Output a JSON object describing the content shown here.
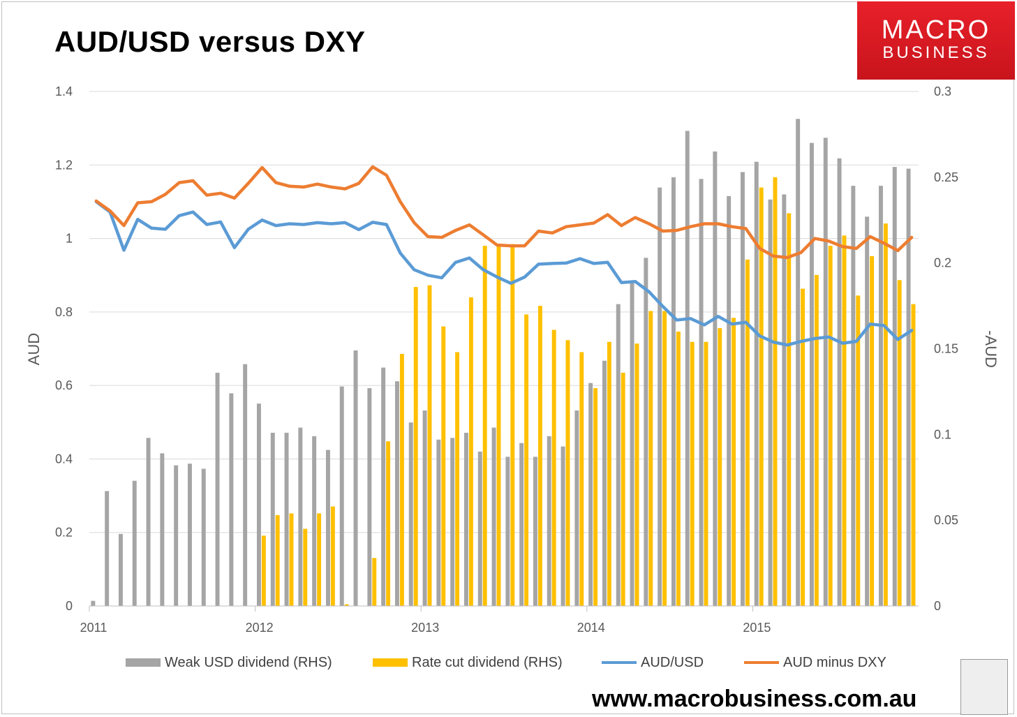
{
  "title": "AUD/USD versus DXY",
  "logo": {
    "line1": "MACRO",
    "line2": "BUSINESS"
  },
  "url": "www.macrobusiness.com.au",
  "chart_data": {
    "type": "bar+line",
    "title": "AUD/USD versus DXY",
    "ylabel_left": "AUD",
    "ylabel_right": "-AUD",
    "ylim_left": [
      0,
      1.4
    ],
    "ylim_right": [
      0,
      0.3
    ],
    "yticks_left": [
      "0",
      "0.2",
      "0.4",
      "0.6",
      "0.8",
      "1",
      "1.2",
      "1.4"
    ],
    "yticks_right": [
      "0",
      "0.05",
      "0.1",
      "0.15",
      "0.2",
      "0.25",
      "0.3"
    ],
    "xticks": [
      "2011",
      "2012",
      "2013",
      "2014",
      "2015"
    ],
    "grid": "horizontal",
    "legend_placement": "bottom",
    "colors": {
      "weak_usd": "#a5a5a5",
      "rate_cut": "#ffc000",
      "audusd": "#5b9bd5",
      "aud_minus_dxy": "#ed7d31"
    },
    "series": [
      {
        "name": "Weak USD dividend (RHS)",
        "axis": "right",
        "kind": "bar",
        "values": [
          0.003,
          0.067,
          0.042,
          0.073,
          0.098,
          0.089,
          0.082,
          0.083,
          0.08,
          0.136,
          0.124,
          0.141,
          0.118,
          0.101,
          0.101,
          0.104,
          0.099,
          0.091,
          0.128,
          0.149,
          0.127,
          0.139,
          0.131,
          0.107,
          0.114,
          0.097,
          0.098,
          0.101,
          0.09,
          0.104,
          0.087,
          0.095,
          0.087,
          0.099,
          0.093,
          0.114,
          0.13,
          0.143,
          0.176,
          0.189,
          0.203,
          0.244,
          0.25,
          0.277,
          0.249,
          0.265,
          0.239,
          0.253,
          0.259,
          0.237,
          0.24,
          0.284,
          0.27,
          0.273,
          0.261,
          0.245,
          0.227,
          0.245,
          0.256,
          0.255
        ]
      },
      {
        "name": "Rate cut dividend (RHS)",
        "axis": "right",
        "kind": "bar",
        "values": [
          0,
          0,
          0,
          0,
          0,
          0,
          0,
          0,
          0,
          0,
          0,
          0,
          0.041,
          0.053,
          0.054,
          0.045,
          0.054,
          0.058,
          0.001,
          0,
          0.028,
          0.096,
          0.147,
          0.186,
          0.187,
          0.163,
          0.148,
          0.18,
          0.21,
          0.21,
          0.211,
          0.17,
          0.175,
          0.161,
          0.155,
          0.148,
          0.127,
          0.154,
          0.136,
          0.153,
          0.172,
          0.172,
          0.16,
          0.154,
          0.154,
          0.162,
          0.168,
          0.202,
          0.244,
          0.25,
          0.229,
          0.185,
          0.193,
          0.21,
          0.216,
          0.181,
          0.204,
          0.223,
          0.19,
          0.176
        ]
      },
      {
        "name": "AUD/USD",
        "axis": "left",
        "kind": "line",
        "values": [
          1.1,
          1.072,
          0.968,
          1.052,
          1.028,
          1.025,
          1.062,
          1.072,
          1.038,
          1.045,
          0.975,
          1.025,
          1.05,
          1.035,
          1.04,
          1.038,
          1.043,
          1.04,
          1.043,
          1.024,
          1.044,
          1.038,
          0.96,
          0.915,
          0.9,
          0.893,
          0.935,
          0.947,
          0.915,
          0.895,
          0.878,
          0.895,
          0.93,
          0.932,
          0.933,
          0.945,
          0.932,
          0.935,
          0.88,
          0.883,
          0.855,
          0.815,
          0.778,
          0.782,
          0.765,
          0.788,
          0.767,
          0.772,
          0.735,
          0.718,
          0.71,
          0.72,
          0.728,
          0.732,
          0.715,
          0.72,
          0.767,
          0.763,
          0.725,
          0.75
        ]
      },
      {
        "name": "AUD minus DXY",
        "axis": "left",
        "kind": "line",
        "values": [
          1.102,
          1.075,
          1.035,
          1.097,
          1.1,
          1.12,
          1.152,
          1.157,
          1.118,
          1.123,
          1.11,
          1.15,
          1.193,
          1.152,
          1.142,
          1.14,
          1.148,
          1.14,
          1.135,
          1.15,
          1.195,
          1.172,
          1.1,
          1.043,
          1.005,
          1.003,
          1.022,
          1.037,
          1.01,
          0.982,
          0.98,
          0.98,
          1.02,
          1.015,
          1.032,
          1.037,
          1.042,
          1.065,
          1.035,
          1.057,
          1.04,
          1.02,
          1.022,
          1.032,
          1.04,
          1.04,
          1.032,
          1.027,
          0.973,
          0.952,
          0.948,
          0.962,
          1.0,
          0.993,
          0.978,
          0.973,
          1.005,
          0.987,
          0.967,
          1.003
        ]
      }
    ],
    "legend": [
      {
        "label": "Weak USD dividend (RHS)",
        "kind": "bar",
        "color": "#a5a5a5"
      },
      {
        "label": "Rate cut dividend (RHS)",
        "kind": "bar",
        "color": "#ffc000"
      },
      {
        "label": "AUD/USD",
        "kind": "line",
        "color": "#5b9bd5"
      },
      {
        "label": "AUD minus DXY",
        "kind": "line",
        "color": "#ed7d31"
      }
    ]
  }
}
